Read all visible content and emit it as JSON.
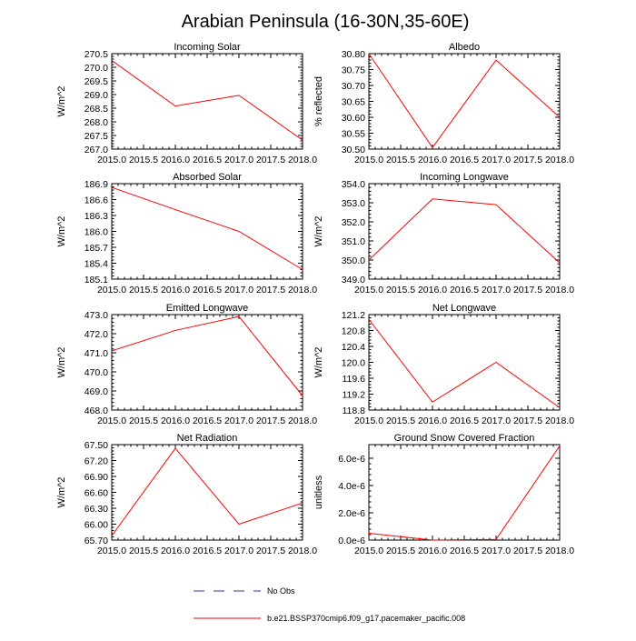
{
  "page_title": "Arabian Peninsula (16-30N,35-60E)",
  "colors": {
    "model_line": "#ff0000",
    "obs_line": "#3333aa",
    "axis": "#000000"
  },
  "legend": {
    "obs_label": "No Obs",
    "model_label": "b.e21.BSSP370cmip6.f09_g17.pacemaker_pacific.008"
  },
  "chart_data": [
    {
      "type": "line",
      "title": "Incoming Solar",
      "ylabel": "W/m^2",
      "x": [
        2015,
        2016,
        2017,
        2018
      ],
      "values": [
        270.25,
        268.58,
        268.97,
        267.33
      ],
      "xlim": [
        2015,
        2018
      ],
      "ylim": [
        267.0,
        270.5
      ],
      "xticks": [
        "2015.0",
        "2015.5",
        "2016.0",
        "2016.5",
        "2017.0",
        "2017.5",
        "2018.0"
      ],
      "yticks": [
        "267.0",
        "267.5",
        "268.0",
        "268.5",
        "269.0",
        "269.5",
        "270.0",
        "270.5"
      ]
    },
    {
      "type": "line",
      "title": "Albedo",
      "ylabel": "% reflected",
      "x": [
        2015,
        2016,
        2017,
        2018
      ],
      "values": [
        30.8,
        30.505,
        30.78,
        30.6
      ],
      "xlim": [
        2015,
        2018
      ],
      "ylim": [
        30.5,
        30.8
      ],
      "xticks": [
        "2015.0",
        "2015.5",
        "2016.0",
        "2016.5",
        "2017.0",
        "2017.5",
        "2018.0"
      ],
      "yticks": [
        "30.50",
        "30.55",
        "30.60",
        "30.65",
        "30.70",
        "30.75",
        "30.80"
      ]
    },
    {
      "type": "line",
      "title": "Absorbed Solar",
      "ylabel": "W/m^2",
      "x": [
        2015,
        2016,
        2017,
        2018
      ],
      "values": [
        186.83,
        186.41,
        186.0,
        185.28
      ],
      "xlim": [
        2015,
        2018
      ],
      "ylim": [
        185.1,
        186.9
      ],
      "xticks": [
        "2015.0",
        "2015.5",
        "2016.0",
        "2016.5",
        "2017.0",
        "2017.5",
        "2018.0"
      ],
      "yticks": [
        "185.1",
        "185.4",
        "185.7",
        "186.0",
        "186.3",
        "186.6",
        "186.9"
      ]
    },
    {
      "type": "line",
      "title": "Incoming Longwave",
      "ylabel": "W/m^2",
      "x": [
        2015,
        2016,
        2017,
        2018
      ],
      "values": [
        350.0,
        353.2,
        352.9,
        349.85
      ],
      "xlim": [
        2015,
        2018
      ],
      "ylim": [
        349.0,
        354.0
      ],
      "xticks": [
        "2015.0",
        "2015.5",
        "2016.0",
        "2016.5",
        "2017.0",
        "2017.5",
        "2018.0"
      ],
      "yticks": [
        "349.0",
        "350.0",
        "351.0",
        "352.0",
        "353.0",
        "354.0"
      ]
    },
    {
      "type": "line",
      "title": "Emitted Longwave",
      "ylabel": "W/m^2",
      "x": [
        2015,
        2016,
        2017,
        2018
      ],
      "values": [
        471.1,
        472.17,
        472.9,
        468.75
      ],
      "xlim": [
        2015,
        2018
      ],
      "ylim": [
        468.0,
        473.0
      ],
      "xticks": [
        "2015.0",
        "2015.5",
        "2016.0",
        "2016.5",
        "2017.0",
        "2017.5",
        "2018.0"
      ],
      "yticks": [
        "468.0",
        "469.0",
        "470.0",
        "471.0",
        "472.0",
        "473.0"
      ]
    },
    {
      "type": "line",
      "title": "Net Longwave",
      "ylabel": "W/m^2",
      "x": [
        2015,
        2016,
        2017,
        2018
      ],
      "values": [
        121.08,
        119.0,
        120.0,
        118.86
      ],
      "xlim": [
        2015,
        2018
      ],
      "ylim": [
        118.8,
        121.2
      ],
      "xticks": [
        "2015.0",
        "2015.5",
        "2016.0",
        "2016.5",
        "2017.0",
        "2017.5",
        "2018.0"
      ],
      "yticks": [
        "118.8",
        "119.2",
        "119.6",
        "120.0",
        "120.4",
        "120.8",
        "121.2"
      ]
    },
    {
      "type": "line",
      "title": "Net Radiation",
      "ylabel": "W/m^2",
      "x": [
        2015,
        2016,
        2017,
        2018
      ],
      "values": [
        65.78,
        67.43,
        66.0,
        66.4
      ],
      "xlim": [
        2015,
        2018
      ],
      "ylim": [
        65.7,
        67.5
      ],
      "xticks": [
        "2015.0",
        "2015.5",
        "2016.0",
        "2016.5",
        "2017.0",
        "2017.5",
        "2018.0"
      ],
      "yticks": [
        "65.70",
        "66.00",
        "66.30",
        "66.60",
        "66.90",
        "67.20",
        "67.50"
      ]
    },
    {
      "type": "line",
      "title": "Ground Snow Covered Fraction",
      "ylabel": "unitless",
      "x": [
        2015,
        2016,
        2017,
        2018
      ],
      "values": [
        5e-07,
        0.0,
        5e-08,
        6.9e-06
      ],
      "xlim": [
        2015,
        2018
      ],
      "ylim": [
        0,
        7e-06
      ],
      "ytick_values": [
        0,
        2e-06,
        4e-06,
        6e-06
      ],
      "xticks": [
        "2015.0",
        "2015.5",
        "2016.0",
        "2016.5",
        "2017.0",
        "2017.5",
        "2018.0"
      ],
      "yticks": [
        "0.0e-6",
        "2.0e-6",
        "4.0e-6",
        "6.0e-6"
      ]
    }
  ]
}
